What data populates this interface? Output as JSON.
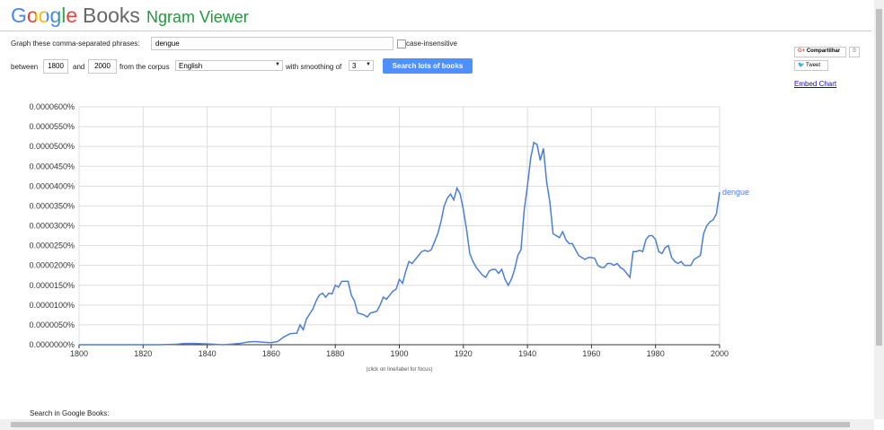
{
  "header": {
    "logo": "Google",
    "product": "Books",
    "title": "Ngram Viewer"
  },
  "form": {
    "phrases_label": "Graph these comma-separated phrases:",
    "phrases_value": "dengue",
    "case_insensitive": "case-insensitive",
    "between": "between",
    "start_year": "1800",
    "and": "and",
    "end_year": "2000",
    "corpus_label": "from the corpus",
    "corpus": "English",
    "smoothing_label": "with smoothing of",
    "smoothing": "3",
    "button": "Search lots of books"
  },
  "social": {
    "share": "Compartilhar",
    "share_count": "0",
    "tweet": "Tweet",
    "embed": "Embed Chart"
  },
  "footer": {
    "search_label": "Search in Google Books:"
  },
  "chart_data": {
    "type": "line",
    "annotation": "(click on line/label for focus)",
    "grid": true,
    "xlim": [
      1800,
      2000
    ],
    "xticks": [
      1800,
      1820,
      1840,
      1860,
      1880,
      1900,
      1920,
      1940,
      1960,
      1980,
      2000
    ],
    "ylim": [
      0,
      6e-05
    ],
    "yticks": [
      {
        "value": 0,
        "label": "0.0000000%"
      },
      {
        "value": 5e-06,
        "label": "0.0000050%"
      },
      {
        "value": 1e-05,
        "label": "0.0000100%"
      },
      {
        "value": 1.5e-05,
        "label": "0.0000150%"
      },
      {
        "value": 2e-05,
        "label": "0.0000200%"
      },
      {
        "value": 2.5e-05,
        "label": "0.0000250%"
      },
      {
        "value": 3e-05,
        "label": "0.0000300%"
      },
      {
        "value": 3.5e-05,
        "label": "0.0000350%"
      },
      {
        "value": 4e-05,
        "label": "0.0000400%"
      },
      {
        "value": 4.5e-05,
        "label": "0.0000450%"
      },
      {
        "value": 5e-05,
        "label": "0.0000500%"
      },
      {
        "value": 5.5e-05,
        "label": "0.0000550%"
      },
      {
        "value": 6e-05,
        "label": "0.0000600%"
      }
    ],
    "x": [
      1800,
      1810,
      1820,
      1825,
      1830,
      1833,
      1836,
      1840,
      1845,
      1850,
      1853,
      1855,
      1858,
      1860,
      1862,
      1864,
      1866,
      1868,
      1869,
      1870,
      1871,
      1873,
      1874,
      1875,
      1876,
      1877,
      1878,
      1879,
      1880,
      1881,
      1882,
      1883,
      1884,
      1885,
      1886,
      1887,
      1888,
      1889,
      1890,
      1891,
      1892,
      1893,
      1894,
      1895,
      1896,
      1897,
      1898,
      1899,
      1900,
      1901,
      1902,
      1903,
      1904,
      1905,
      1906,
      1907,
      1908,
      1909,
      1910,
      1911,
      1912,
      1913,
      1914,
      1915,
      1916,
      1917,
      1918,
      1919,
      1920,
      1921,
      1922,
      1923,
      1924,
      1925,
      1926,
      1927,
      1928,
      1929,
      1930,
      1931,
      1932,
      1933,
      1934,
      1935,
      1936,
      1937,
      1938,
      1939,
      1940,
      1941,
      1942,
      1943,
      1944,
      1945,
      1946,
      1947,
      1948,
      1949,
      1950,
      1951,
      1952,
      1953,
      1954,
      1955,
      1956,
      1957,
      1958,
      1959,
      1960,
      1961,
      1962,
      1963,
      1964,
      1965,
      1966,
      1967,
      1968,
      1969,
      1970,
      1971,
      1972,
      1973,
      1974,
      1975,
      1976,
      1977,
      1978,
      1979,
      1980,
      1981,
      1982,
      1983,
      1984,
      1985,
      1986,
      1987,
      1988,
      1989,
      1990,
      1991,
      1992,
      1993,
      1994,
      1995,
      1996,
      1997,
      1998,
      1999,
      2000
    ],
    "series": [
      {
        "name": "dengue",
        "color": "#4a7fd4",
        "values": [
          0,
          0,
          0,
          0,
          1e-07,
          3e-07,
          3e-07,
          2e-07,
          0,
          3e-07,
          7e-07,
          8e-07,
          6e-07,
          5e-07,
          8e-07,
          2e-06,
          2.8e-06,
          2.9e-06,
          5e-06,
          3.8e-06,
          6.5e-06,
          9e-06,
          1.1e-05,
          1.25e-05,
          1.3e-05,
          1.2e-05,
          1.3e-05,
          1.28e-05,
          1.5e-05,
          1.45e-05,
          1.6e-05,
          1.6e-05,
          1.6e-05,
          1.25e-05,
          1.1e-05,
          8e-06,
          7.8e-06,
          7.5e-06,
          7e-06,
          8e-06,
          8.2e-06,
          8.5e-06,
          1e-05,
          1.2e-05,
          1.15e-05,
          1.25e-05,
          1.35e-05,
          1.4e-05,
          1.65e-05,
          1.55e-05,
          1.85e-05,
          2.1e-05,
          2.05e-05,
          2.15e-05,
          2.25e-05,
          2.35e-05,
          2.38e-05,
          2.35e-05,
          2.4e-05,
          2.6e-05,
          2.8e-05,
          3.1e-05,
          3.5e-05,
          3.7e-05,
          3.8e-05,
          3.65e-05,
          3.95e-05,
          3.8e-05,
          3.4e-05,
          2.9e-05,
          2.3e-05,
          2.1e-05,
          1.95e-05,
          1.85e-05,
          1.75e-05,
          1.7e-05,
          1.85e-05,
          1.9e-05,
          1.9e-05,
          1.8e-05,
          1.9e-05,
          1.65e-05,
          1.5e-05,
          1.65e-05,
          1.9e-05,
          2.25e-05,
          2.4e-05,
          3.4e-05,
          4e-05,
          4.7e-05,
          5.1e-05,
          5.05e-05,
          4.65e-05,
          4.95e-05,
          4.1e-05,
          3.6e-05,
          2.8e-05,
          2.75e-05,
          2.7e-05,
          2.85e-05,
          2.65e-05,
          2.55e-05,
          2.55e-05,
          2.4e-05,
          2.25e-05,
          2.2e-05,
          2.15e-05,
          2.2e-05,
          2.2e-05,
          2.18e-05,
          2e-05,
          1.95e-05,
          1.95e-05,
          2.05e-05,
          2.05e-05,
          2e-05,
          2.05e-05,
          1.95e-05,
          1.9e-05,
          1.8e-05,
          1.7e-05,
          2.35e-05,
          2.35e-05,
          2.38e-05,
          2.35e-05,
          2.65e-05,
          2.75e-05,
          2.75e-05,
          2.65e-05,
          2.35e-05,
          2.3e-05,
          2.45e-05,
          2.5e-05,
          2.2e-05,
          2.1e-05,
          2.05e-05,
          2.1e-05,
          2e-05,
          2e-05,
          2e-05,
          2.15e-05,
          2.2e-05,
          2.25e-05,
          2.8e-05,
          3e-05,
          3.1e-05,
          3.15e-05,
          3.3e-05,
          3.85e-05
        ]
      }
    ]
  }
}
